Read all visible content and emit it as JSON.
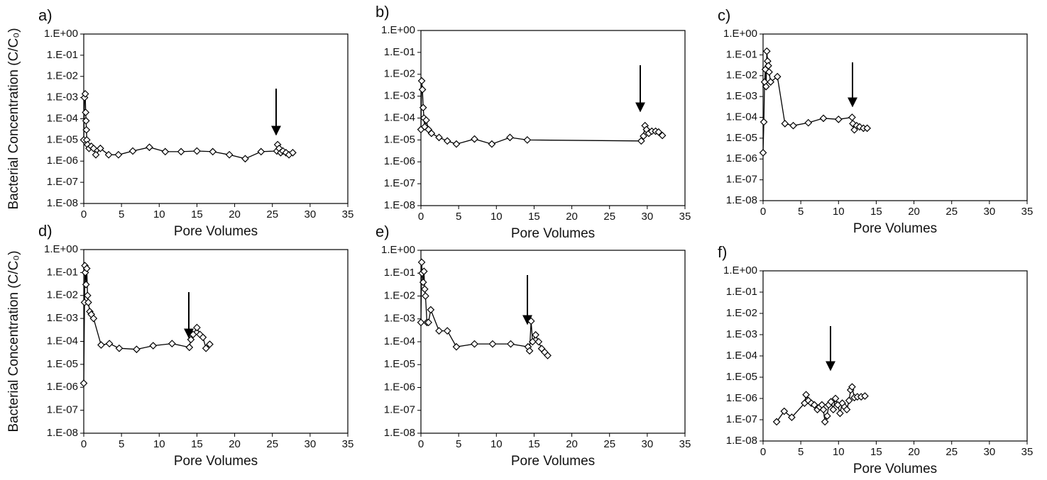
{
  "chart_data": [
    {
      "type": "line",
      "label": "a)",
      "x_label": "Pore Volumes",
      "y_label": "Bacterial Concentration (C/C₀)",
      "log_y": true,
      "marker": "diamond",
      "color": "#000000",
      "x": [
        0,
        0.1,
        0.2,
        0.25,
        0.3,
        0.35,
        0.4,
        0.5,
        0.7,
        1.0,
        1.3,
        1.6,
        2.2,
        3.3,
        4.6,
        6.5,
        8.7,
        10.8,
        12.9,
        15,
        17.1,
        19.3,
        21.4,
        23.5,
        25.6,
        25.7,
        25.9,
        26.1,
        26.4,
        26.8,
        27.2,
        27.7
      ],
      "values": [
        1e-05,
        0.001,
        0.0015,
        0.0002,
        8e-05,
        3e-05,
        1e-05,
        6e-06,
        4e-06,
        5e-06,
        4e-06,
        2e-06,
        4e-06,
        2e-06,
        2e-06,
        3e-06,
        4.5e-06,
        2.8e-06,
        2.8e-06,
        3e-06,
        2.8e-06,
        2e-06,
        1.3e-06,
        2.8e-06,
        3e-06,
        6e-06,
        4e-06,
        2.5e-06,
        3e-06,
        2.5e-06,
        2e-06,
        2.5e-06
      ],
      "xlim": [
        0,
        35
      ],
      "xticks": [
        0,
        5,
        10,
        15,
        20,
        25,
        30,
        35
      ],
      "ylim": [
        1e-08,
        1
      ],
      "yticks": [
        {
          "value": 1,
          "label": "1.E+00"
        },
        {
          "value": 0.1,
          "label": "1.E-01"
        },
        {
          "value": 0.01,
          "label": "1.E-02"
        },
        {
          "value": 0.001,
          "label": "1.E-03"
        },
        {
          "value": 0.0001,
          "label": "1.E-04"
        },
        {
          "value": 1e-05,
          "label": "1.E-05"
        },
        {
          "value": 1e-06,
          "label": "1.E-06"
        },
        {
          "value": 1e-07,
          "label": "1.E-07"
        },
        {
          "value": 1e-08,
          "label": "1.E-08"
        }
      ]
    },
    {
      "type": "line",
      "label": "b)",
      "x_label": "Pore Volumes",
      "log_y": true,
      "marker": "diamond",
      "color": "#000000",
      "x": [
        0,
        0.1,
        0.2,
        0.3,
        0.4,
        0.5,
        0.7,
        1.0,
        1.4,
        2.4,
        3.5,
        4.7,
        7.1,
        9.4,
        11.8,
        14.1,
        29.2,
        29.5,
        29.7,
        29.9,
        30.2,
        30.6,
        31.1,
        31.5,
        32
      ],
      "values": [
        3e-05,
        0.005,
        0.002,
        0.0003,
        0.0001,
        4e-05,
        8e-05,
        3e-05,
        2e-05,
        1.3e-05,
        9e-06,
        6.5e-06,
        1.1e-05,
        6.5e-06,
        1.3e-05,
        1e-05,
        9e-06,
        1.5e-05,
        4.5e-05,
        3e-05,
        2e-05,
        2.5e-05,
        2.5e-05,
        2.3e-05,
        1.6e-05
      ],
      "xlim": [
        0,
        35
      ],
      "xticks": [
        0,
        5,
        10,
        15,
        20,
        25,
        30,
        35
      ],
      "ylim": [
        1e-08,
        1
      ],
      "yticks": [
        {
          "value": 1,
          "label": "1.E+00"
        },
        {
          "value": 0.1,
          "label": "1.E-01"
        },
        {
          "value": 0.01,
          "label": "1.E-02"
        },
        {
          "value": 0.001,
          "label": "1.E-03"
        },
        {
          "value": 0.0001,
          "label": "1.E-04"
        },
        {
          "value": 1e-05,
          "label": "1.E-05"
        },
        {
          "value": 1e-06,
          "label": "1.E-06"
        },
        {
          "value": 1e-07,
          "label": "1.E-07"
        },
        {
          "value": 1e-08,
          "label": "1.E-08"
        }
      ]
    },
    {
      "type": "line",
      "label": "c)",
      "x_label": "Pore Volumes",
      "log_y": true,
      "marker": "diamond",
      "color": "#000000",
      "x": [
        0,
        0.1,
        0.2,
        0.3,
        0.4,
        0.5,
        0.6,
        0.7,
        0.8,
        1.0,
        1.9,
        2.9,
        4,
        6,
        8,
        10,
        11.8,
        11.9,
        12.1,
        12.4,
        12.8,
        13.3,
        13.8
      ],
      "values": [
        2e-06,
        6e-05,
        0.005,
        0.02,
        0.003,
        0.15,
        0.05,
        0.03,
        0.015,
        0.005,
        0.009,
        5e-05,
        4e-05,
        5.5e-05,
        9e-05,
        8e-05,
        0.0001,
        5e-05,
        2.5e-05,
        4e-05,
        3.5e-05,
        3e-05,
        3e-05
      ],
      "xlim": [
        0,
        35
      ],
      "xticks": [
        0,
        5,
        10,
        15,
        20,
        25,
        30,
        35
      ],
      "ylim": [
        1e-08,
        1
      ],
      "yticks": [
        {
          "value": 1,
          "label": "1.E+00"
        },
        {
          "value": 0.1,
          "label": "1.E-01"
        },
        {
          "value": 0.01,
          "label": "1.E-02"
        },
        {
          "value": 0.001,
          "label": "1.E-03"
        },
        {
          "value": 0.0001,
          "label": "1.E-04"
        },
        {
          "value": 1e-05,
          "label": "1.E-05"
        },
        {
          "value": 1e-06,
          "label": "1.E-06"
        },
        {
          "value": 1e-07,
          "label": "1.E-07"
        },
        {
          "value": 1e-08,
          "label": "1.E-08"
        }
      ]
    },
    {
      "type": "line",
      "label": "d)",
      "x_label": "Pore Volumes",
      "y_label": "Bacterial Concentration (C/C₀)",
      "log_y": true,
      "marker": "diamond",
      "color": "#000000",
      "x": [
        0,
        0.1,
        0.15,
        0.2,
        0.3,
        0.4,
        0.5,
        0.6,
        0.8,
        1.0,
        1.3,
        2.3,
        3.4,
        4.7,
        7,
        9.2,
        11.7,
        14,
        14.2,
        14.5,
        15,
        15.4,
        15.8,
        16.2,
        16.7
      ],
      "values": [
        1.5e-06,
        0.005,
        0.2,
        0.1,
        0.03,
        0.15,
        0.01,
        0.005,
        0.002,
        0.0015,
        0.001,
        7e-05,
        8e-05,
        5e-05,
        4.5e-05,
        6.5e-05,
        8e-05,
        5.5e-05,
        0.00012,
        0.0002,
        0.0004,
        0.0002,
        0.00015,
        5e-05,
        7.5e-05
      ],
      "xlim": [
        0,
        35
      ],
      "xticks": [
        0,
        5,
        10,
        15,
        20,
        25,
        30,
        35
      ],
      "ylim": [
        1e-08,
        1
      ],
      "yticks": [
        {
          "value": 1,
          "label": "1.E+00"
        },
        {
          "value": 0.1,
          "label": "1.E-01"
        },
        {
          "value": 0.01,
          "label": "1.E-02"
        },
        {
          "value": 0.001,
          "label": "1.E-03"
        },
        {
          "value": 0.0001,
          "label": "1.E-04"
        },
        {
          "value": 1e-05,
          "label": "1.E-05"
        },
        {
          "value": 1e-06,
          "label": "1.E-06"
        },
        {
          "value": 1e-07,
          "label": "1.E-07"
        },
        {
          "value": 1e-08,
          "label": "1.E-08"
        }
      ]
    },
    {
      "type": "line",
      "label": "e)",
      "x_label": "Pore Volumes",
      "log_y": true,
      "marker": "diamond",
      "color": "#000000",
      "x": [
        0,
        0.1,
        0.15,
        0.3,
        0.4,
        0.5,
        0.6,
        0.8,
        1.0,
        1.3,
        2.4,
        3.5,
        4.7,
        7.1,
        9.5,
        11.9,
        14.2,
        14.4,
        14.6,
        14.8,
        15.2,
        15.6,
        16,
        16.4,
        16.8
      ],
      "values": [
        0.0007,
        0.3,
        0.1,
        0.04,
        0.12,
        0.02,
        0.01,
        0.0007,
        0.0007,
        0.0025,
        0.0003,
        0.0003,
        6e-05,
        8e-05,
        8e-05,
        8e-05,
        6e-05,
        4e-05,
        0.0008,
        0.0001,
        0.0002,
        0.0001,
        5e-05,
        3.5e-05,
        2.5e-05
      ],
      "xlim": [
        0,
        35
      ],
      "xticks": [
        0,
        5,
        10,
        15,
        20,
        25,
        30,
        35
      ],
      "ylim": [
        1e-08,
        1
      ],
      "yticks": [
        {
          "value": 1,
          "label": "1.E+00"
        },
        {
          "value": 0.1,
          "label": "1.E-01"
        },
        {
          "value": 0.01,
          "label": "1.E-02"
        },
        {
          "value": 0.001,
          "label": "1.E-03"
        },
        {
          "value": 0.0001,
          "label": "1.E-04"
        },
        {
          "value": 1e-05,
          "label": "1.E-05"
        },
        {
          "value": 1e-06,
          "label": "1.E-06"
        },
        {
          "value": 1e-07,
          "label": "1.E-07"
        },
        {
          "value": 1e-08,
          "label": "1.E-08"
        }
      ]
    },
    {
      "type": "line",
      "label": "f)",
      "x_label": "Pore Volumes",
      "log_y": true,
      "marker": "diamond",
      "color": "#000000",
      "x": [
        1.8,
        2.8,
        3.8,
        5.5,
        5.7,
        6,
        6.4,
        6.8,
        7.2,
        7.5,
        7.8,
        8,
        8.2,
        8.5,
        8.7,
        9,
        9.3,
        9.6,
        9.9,
        10.2,
        10.5,
        10.8,
        11.1,
        11.4,
        11.6,
        11.8,
        12.1,
        12.5,
        13,
        13.5
      ],
      "values": [
        8e-08,
        2.5e-07,
        1.3e-07,
        6e-07,
        1.5e-06,
        8e-07,
        6e-07,
        5e-07,
        3e-07,
        4e-07,
        5e-07,
        3e-07,
        8e-08,
        1.5e-07,
        5e-07,
        7e-07,
        3e-07,
        1e-06,
        5e-07,
        2e-07,
        6e-07,
        4e-07,
        3e-07,
        8e-07,
        2.5e-06,
        3.5e-06,
        1.1e-06,
        1.2e-06,
        1.2e-06,
        1.3e-06
      ],
      "xlim": [
        0,
        35
      ],
      "xticks": [
        0,
        5,
        10,
        15,
        20,
        25,
        30,
        35
      ],
      "ylim": [
        1e-08,
        1
      ],
      "yticks": [
        {
          "value": 1,
          "label": "1.E+00"
        },
        {
          "value": 0.1,
          "label": "1.E-01"
        },
        {
          "value": 0.01,
          "label": "1.E-02"
        },
        {
          "value": 0.001,
          "label": "1.E-03"
        },
        {
          "value": 0.0001,
          "label": "1.E-04"
        },
        {
          "value": 1e-05,
          "label": "1.E-05"
        },
        {
          "value": 1e-06,
          "label": "1.E-06"
        },
        {
          "value": 1e-07,
          "label": "1.E-07"
        },
        {
          "value": 1e-08,
          "label": "1.E-08"
        }
      ]
    }
  ]
}
